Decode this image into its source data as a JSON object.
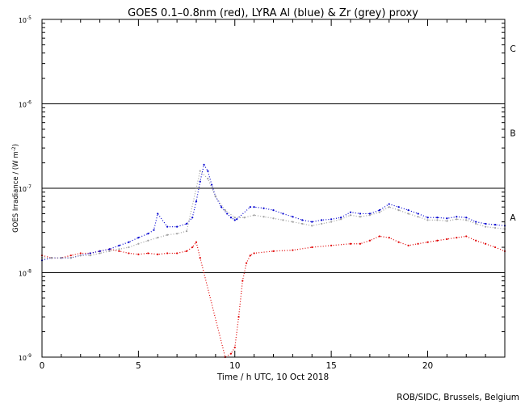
{
  "chart_data": {
    "type": "scatter",
    "title": "GOES 0.1–0.8nm (red), LYRA Al (blue) & Zr (grey) proxy",
    "xlabel": "Time / h UTC, 10 Oct 2018",
    "ylabel": "GOES Irradiance / (W m",
    "ylabel_sup": "-2",
    "ylabel_close": ")",
    "xlim": [
      0,
      24
    ],
    "ylim": [
      1e-09,
      1e-05
    ],
    "yscale": "log",
    "x_ticks": [
      0,
      5,
      10,
      15,
      20
    ],
    "x_tick_labels": [
      "0",
      "5",
      "10",
      "15",
      "20"
    ],
    "y_tick_labels": [
      {
        "value": 1e-09,
        "base": "10",
        "exp": "-9"
      },
      {
        "value": 1e-08,
        "base": "10",
        "exp": "-8"
      },
      {
        "value": 1e-07,
        "base": "10",
        "exp": "-7"
      },
      {
        "value": 1e-06,
        "base": "10",
        "exp": "-6"
      },
      {
        "value": 1e-05,
        "base": "10",
        "exp": "-5"
      }
    ],
    "flare_class_lines": [
      1e-08,
      1e-07,
      1e-06,
      1e-05
    ],
    "flare_classes": [
      {
        "label": "A",
        "value": 4.5e-08
      },
      {
        "label": "B",
        "value": 4.5e-07
      },
      {
        "label": "C",
        "value": 4.5e-06
      }
    ],
    "series": [
      {
        "color": "#e00000",
        "x": [
          0,
          0.5,
          1,
          1.5,
          2,
          2.5,
          3,
          3.5,
          4,
          4.5,
          5,
          5.5,
          6,
          6.5,
          7,
          7.5,
          7.8,
          8.0,
          8.2,
          9.5,
          9.8,
          10.0,
          10.2,
          10.4,
          10.6,
          10.8,
          11,
          12,
          13,
          14,
          15,
          16,
          16.5,
          17,
          17.5,
          18,
          18.5,
          19,
          19.5,
          20,
          20.5,
          21,
          21.5,
          22,
          22.5,
          23,
          23.5,
          24
        ],
        "y": [
          1.6e-08,
          1.5e-08,
          1.5e-08,
          1.6e-08,
          1.7e-08,
          1.7e-08,
          1.8e-08,
          1.9e-08,
          1.8e-08,
          1.7e-08,
          1.65e-08,
          1.7e-08,
          1.65e-08,
          1.7e-08,
          1.7e-08,
          1.8e-08,
          2e-08,
          2.3e-08,
          1.5e-08,
          1e-09,
          1.1e-09,
          1.3e-09,
          3e-09,
          8e-09,
          1.3e-08,
          1.6e-08,
          1.7e-08,
          1.8e-08,
          1.85e-08,
          2e-08,
          2.1e-08,
          2.2e-08,
          2.2e-08,
          2.4e-08,
          2.7e-08,
          2.6e-08,
          2.3e-08,
          2.1e-08,
          2.2e-08,
          2.3e-08,
          2.4e-08,
          2.5e-08,
          2.6e-08,
          2.7e-08,
          2.4e-08,
          2.2e-08,
          2e-08,
          1.8e-08
        ]
      },
      {
        "color": "#0000d0",
        "x": [
          0,
          0.5,
          1,
          1.5,
          2,
          2.5,
          3,
          3.5,
          4,
          4.5,
          5,
          5.5,
          5.8,
          6.0,
          6.5,
          7,
          7.5,
          7.8,
          8.0,
          8.2,
          8.4,
          8.6,
          8.8,
          9.0,
          9.3,
          9.6,
          9.8,
          10.0,
          10.1,
          10.8,
          11,
          11.5,
          12,
          12.5,
          13,
          13.5,
          14,
          14.5,
          15,
          15.5,
          16,
          16.5,
          17,
          17.5,
          18,
          18.5,
          19,
          19.5,
          20,
          20.5,
          21,
          21.5,
          22,
          22.5,
          23,
          23.5,
          24
        ],
        "y": [
          1.4e-08,
          1.5e-08,
          1.5e-08,
          1.5e-08,
          1.6e-08,
          1.7e-08,
          1.8e-08,
          1.9e-08,
          2.1e-08,
          2.3e-08,
          2.6e-08,
          2.9e-08,
          3.2e-08,
          5e-08,
          3.5e-08,
          3.5e-08,
          3.8e-08,
          4.5e-08,
          7e-08,
          1.2e-07,
          1.9e-07,
          1.6e-07,
          1.1e-07,
          8e-08,
          6e-08,
          5e-08,
          4.5e-08,
          4.2e-08,
          4.3e-08,
          6e-08,
          6e-08,
          5.8e-08,
          5.5e-08,
          5e-08,
          4.6e-08,
          4.2e-08,
          4e-08,
          4.2e-08,
          4.3e-08,
          4.5e-08,
          5.2e-08,
          5e-08,
          5e-08,
          5.5e-08,
          6.5e-08,
          6e-08,
          5.5e-08,
          5e-08,
          4.5e-08,
          4.5e-08,
          4.4e-08,
          4.6e-08,
          4.5e-08,
          4e-08,
          3.8e-08,
          3.7e-08,
          3.6e-08
        ]
      },
      {
        "color": "#a0a0a0",
        "x": [
          0,
          0.5,
          1,
          1.5,
          2,
          2.5,
          3,
          3.5,
          4,
          4.5,
          5,
          5.5,
          6,
          6.5,
          7,
          7.5,
          8.2,
          8.6,
          9.0,
          9.5,
          10.0,
          10.5,
          11,
          11.5,
          12,
          12.5,
          13,
          13.5,
          14,
          14.5,
          15,
          15.5,
          16,
          16.5,
          17,
          17.5,
          18,
          18.5,
          19,
          19.5,
          20,
          20.5,
          21,
          21.5,
          22,
          22.5,
          23,
          23.5,
          24
        ],
        "y": [
          1.5e-08,
          1.5e-08,
          1.5e-08,
          1.5e-08,
          1.6e-08,
          1.6e-08,
          1.7e-08,
          1.8e-08,
          1.9e-08,
          2e-08,
          2.2e-08,
          2.4e-08,
          2.6e-08,
          2.8e-08,
          2.9e-08,
          3.1e-08,
          1.6e-07,
          1.3e-07,
          8e-08,
          5.5e-08,
          4.5e-08,
          4.5e-08,
          4.8e-08,
          4.6e-08,
          4.4e-08,
          4.2e-08,
          4e-08,
          3.8e-08,
          3.6e-08,
          3.8e-08,
          4e-08,
          4.3e-08,
          4.8e-08,
          4.6e-08,
          4.8e-08,
          5.2e-08,
          6e-08,
          5.5e-08,
          5e-08,
          4.6e-08,
          4.2e-08,
          4.2e-08,
          4.1e-08,
          4.3e-08,
          4.2e-08,
          3.8e-08,
          3.5e-08,
          3.4e-08,
          3.3e-08
        ]
      }
    ]
  },
  "footer": {
    "credit": "ROB/SIDC, Brussels, Belgium"
  }
}
